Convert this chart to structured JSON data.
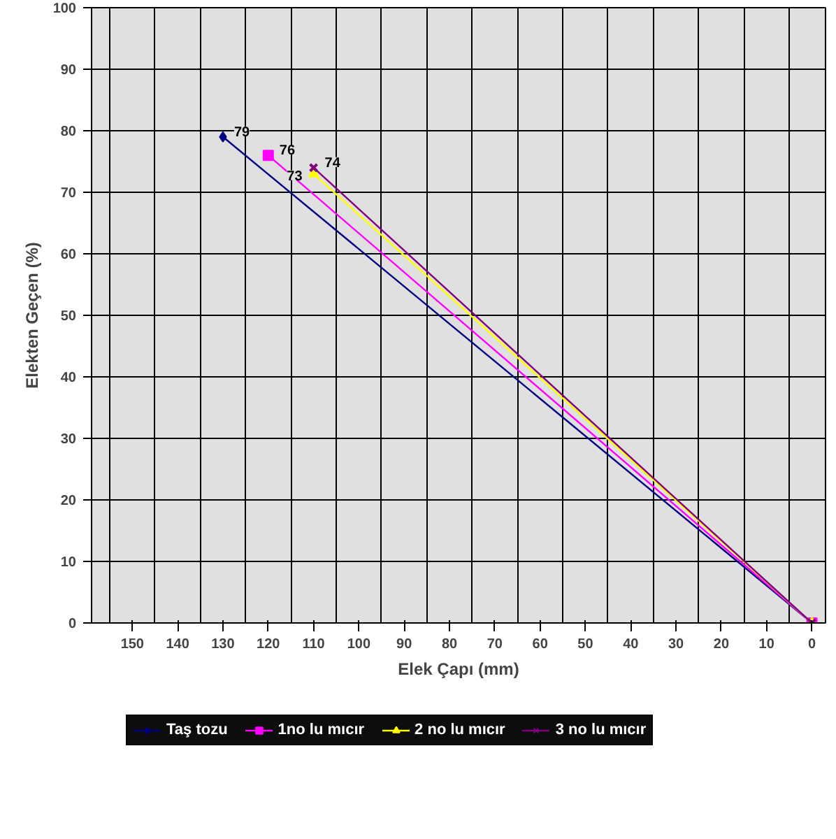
{
  "chart_data": {
    "type": "line",
    "xlabel": "Elek Çapı (mm)",
    "ylabel": "Elekten Geçen (%)",
    "xlim": [
      159,
      -3
    ],
    "xticks": [
      150,
      140,
      130,
      120,
      110,
      100,
      90,
      80,
      70,
      60,
      50,
      40,
      30,
      20,
      10,
      0
    ],
    "ylim": [
      0,
      100
    ],
    "yticks": [
      0,
      10,
      20,
      30,
      40,
      50,
      60,
      70,
      80,
      90,
      100
    ],
    "grid": true,
    "legend": "bottom",
    "series": [
      {
        "name": "Taş tozu",
        "color": "#000080",
        "marker": "diamond",
        "x": [
          130,
          0
        ],
        "values": [
          79,
          0
        ],
        "value_labels": [
          "79",
          null
        ]
      },
      {
        "name": "1no lu mıcır",
        "color": "#ff00ff",
        "marker": "square",
        "x": [
          120,
          0
        ],
        "values": [
          76,
          0
        ],
        "value_labels": [
          "76",
          null
        ]
      },
      {
        "name": "2 no lu mıcır",
        "color": "#ffff00",
        "marker": "triangle",
        "x": [
          110,
          0
        ],
        "values": [
          73,
          0
        ],
        "value_labels": [
          "73",
          null
        ]
      },
      {
        "name": "3 no lu mıcır",
        "color": "#800080",
        "marker": "cross",
        "x": [
          110,
          0
        ],
        "values": [
          74,
          0
        ],
        "value_labels": [
          "74",
          null
        ]
      }
    ]
  }
}
